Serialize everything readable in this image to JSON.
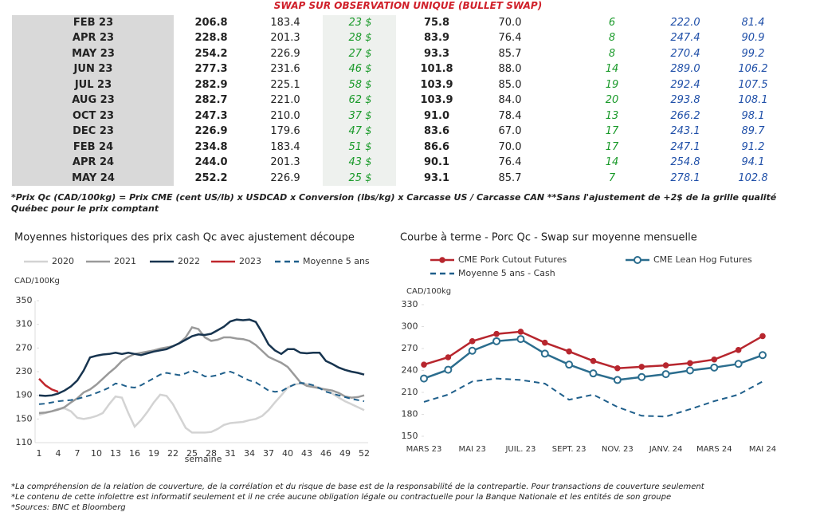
{
  "header": {
    "title": "SWAP SUR OBSERVATION UNIQUE (BULLET SWAP)"
  },
  "table": {
    "rows": [
      [
        "FEB 23",
        "206.8",
        "183.4",
        "23 $",
        "75.8",
        "70.0",
        "6",
        "222.0",
        "81.4"
      ],
      [
        "APR 23",
        "228.8",
        "201.3",
        "28 $",
        "83.9",
        "76.4",
        "8",
        "247.4",
        "90.9"
      ],
      [
        "MAY 23",
        "254.2",
        "226.9",
        "27 $",
        "93.3",
        "85.7",
        "8",
        "270.4",
        "99.2"
      ],
      [
        "JUN 23",
        "277.3",
        "231.6",
        "46 $",
        "101.8",
        "88.0",
        "14",
        "289.0",
        "106.2"
      ],
      [
        "JUL 23",
        "282.9",
        "225.1",
        "58 $",
        "103.9",
        "85.0",
        "19",
        "292.4",
        "107.5"
      ],
      [
        "AUG 23",
        "282.7",
        "221.0",
        "62 $",
        "103.9",
        "84.0",
        "20",
        "293.8",
        "108.1"
      ],
      [
        "OCT 23",
        "247.3",
        "210.0",
        "37 $",
        "91.0",
        "78.4",
        "13",
        "266.2",
        "98.1"
      ],
      [
        "DEC 23",
        "226.9",
        "179.6",
        "47 $",
        "83.6",
        "67.0",
        "17",
        "243.1",
        "89.7"
      ],
      [
        "FEB 24",
        "234.8",
        "183.4",
        "51 $",
        "86.6",
        "70.0",
        "17",
        "247.1",
        "91.2"
      ],
      [
        "APR 24",
        "244.0",
        "201.3",
        "43 $",
        "90.1",
        "76.4",
        "14",
        "254.8",
        "94.1"
      ],
      [
        "MAY 24",
        "252.2",
        "226.9",
        "25 $",
        "93.1",
        "85.7",
        "7",
        "278.1",
        "102.8"
      ]
    ],
    "footnote": "*Prix Qc (CAD/100kg) = Prix CME (cent US/lb) x USDCAD x Conversion (lbs/kg) x Carcasse US / Carcasse CAN **Sans l'ajustement de +2$ de la grille qualité Québec pour le prix comptant"
  },
  "chart_data": [
    {
      "type": "line",
      "title": "Moyennes historiques des prix cash Qc avec ajustement découpe",
      "y_label": "CAD/100Kg",
      "x_label": "semaine",
      "x": [
        1,
        2,
        3,
        4,
        5,
        6,
        7,
        8,
        9,
        10,
        11,
        12,
        13,
        14,
        15,
        16,
        17,
        18,
        19,
        20,
        21,
        22,
        23,
        24,
        25,
        26,
        27,
        28,
        29,
        30,
        31,
        32,
        33,
        34,
        35,
        36,
        37,
        38,
        39,
        40,
        41,
        42,
        43,
        44,
        45,
        46,
        47,
        48,
        49,
        50,
        51,
        52
      ],
      "xlim": [
        1,
        52
      ],
      "xticks": [
        1,
        4,
        7,
        10,
        13,
        16,
        19,
        22,
        25,
        28,
        31,
        34,
        37,
        40,
        43,
        46,
        49,
        52
      ],
      "ylim": [
        110,
        350
      ],
      "yticks": [
        110,
        150,
        190,
        230,
        270,
        310,
        350
      ],
      "series": [
        {
          "name": "2020",
          "color": "#d3d3d3",
          "values": [
            157,
            160,
            163,
            167,
            168,
            163,
            152,
            150,
            152,
            155,
            160,
            175,
            188,
            186,
            160,
            137,
            148,
            162,
            178,
            191,
            189,
            175,
            155,
            135,
            127,
            127,
            127,
            128,
            133,
            140,
            143,
            144,
            145,
            148,
            150,
            155,
            165,
            178,
            190,
            203,
            208,
            210,
            209,
            206,
            203,
            198,
            193,
            186,
            180,
            175,
            170,
            165
          ]
        },
        {
          "name": "2021",
          "color": "#9a9a9a",
          "values": [
            160,
            161,
            163,
            166,
            170,
            178,
            185,
            195,
            200,
            208,
            218,
            228,
            237,
            248,
            255,
            260,
            262,
            264,
            266,
            269,
            271,
            273,
            278,
            288,
            305,
            302,
            288,
            282,
            284,
            288,
            288,
            286,
            285,
            282,
            275,
            265,
            255,
            250,
            245,
            238,
            225,
            212,
            206,
            204,
            202,
            200,
            198,
            194,
            188,
            186,
            187,
            190
          ]
        },
        {
          "name": "2022",
          "color": "#17344f",
          "values": [
            190,
            189,
            190,
            193,
            198,
            205,
            215,
            232,
            254,
            257,
            259,
            260,
            262,
            260,
            262,
            260,
            258,
            261,
            264,
            266,
            268,
            273,
            278,
            284,
            290,
            293,
            292,
            294,
            300,
            306,
            315,
            318,
            317,
            318,
            314,
            296,
            276,
            266,
            260,
            268,
            268,
            262,
            261,
            262,
            262,
            248,
            243,
            237,
            233,
            230,
            228,
            225
          ]
        },
        {
          "name": "2023",
          "color": "#c0272d",
          "values": [
            218,
            207,
            200,
            196,
            null,
            null,
            null,
            null,
            null,
            null,
            null,
            null,
            null,
            null,
            null,
            null,
            null,
            null,
            null,
            null,
            null,
            null,
            null,
            null,
            null,
            null,
            null,
            null,
            null,
            null,
            null,
            null,
            null,
            null,
            null,
            null,
            null,
            null,
            null,
            null,
            null,
            null,
            null,
            null,
            null,
            null,
            null,
            null,
            null,
            null,
            null,
            null
          ]
        },
        {
          "name": "Moyenne 5 ans",
          "color": "#1f5f8b",
          "dashed": true,
          "values": [
            175,
            176,
            178,
            180,
            181,
            182,
            184,
            187,
            190,
            194,
            198,
            203,
            210,
            208,
            204,
            203,
            207,
            213,
            219,
            225,
            228,
            226,
            224,
            227,
            232,
            228,
            222,
            222,
            224,
            228,
            230,
            226,
            220,
            215,
            212,
            205,
            198,
            196,
            197,
            203,
            208,
            211,
            210,
            207,
            202,
            196,
            193,
            190,
            187,
            184,
            182,
            180
          ]
        }
      ]
    },
    {
      "type": "line",
      "title": "Courbe à terme - Porc Qc - Swap sur moyenne mensuelle",
      "y_label": "CAD/100kg",
      "categories": [
        "MARS 23",
        null,
        "MAI 23",
        null,
        "JUIL. 23",
        null,
        "SEPT. 23",
        null,
        "NOV. 23",
        null,
        "JANV. 24",
        null,
        "MARS 24",
        null,
        "MAI 24"
      ],
      "ylim": [
        150,
        330
      ],
      "yticks": [
        150,
        180,
        210,
        240,
        270,
        300,
        330
      ],
      "series": [
        {
          "name": "CME Pork Cutout Futures",
          "color": "#b7262e",
          "marker": "filled",
          "values": [
            248,
            258,
            280,
            290,
            293,
            278,
            266,
            253,
            243,
            245,
            247,
            250,
            255,
            268,
            287
          ]
        },
        {
          "name": "CME Lean Hog Futures",
          "color": "#2b6d8e",
          "marker": "open",
          "values": [
            229,
            241,
            267,
            280,
            283,
            263,
            248,
            236,
            227,
            231,
            235,
            240,
            244,
            249,
            261
          ]
        },
        {
          "name": "Moyenne 5 ans - Cash",
          "color": "#1f5f8b",
          "dashed": true,
          "values": [
            197,
            207,
            225,
            229,
            227,
            222,
            200,
            207,
            190,
            178,
            177,
            187,
            198,
            207,
            225
          ]
        }
      ]
    }
  ],
  "notes": [
    "*La compréhension de la relation de couverture, de la corrélation et du risque de base est de la responsabilité de la contrepartie. Pour transactions de couverture seulement",
    "*Le contenu de cette infolettre est informatif seulement et il ne crée aucune obligation légale ou contractuelle pour la Banque Nationale et les entités de son groupe",
    "*Sources: BNC et Bloomberg"
  ]
}
